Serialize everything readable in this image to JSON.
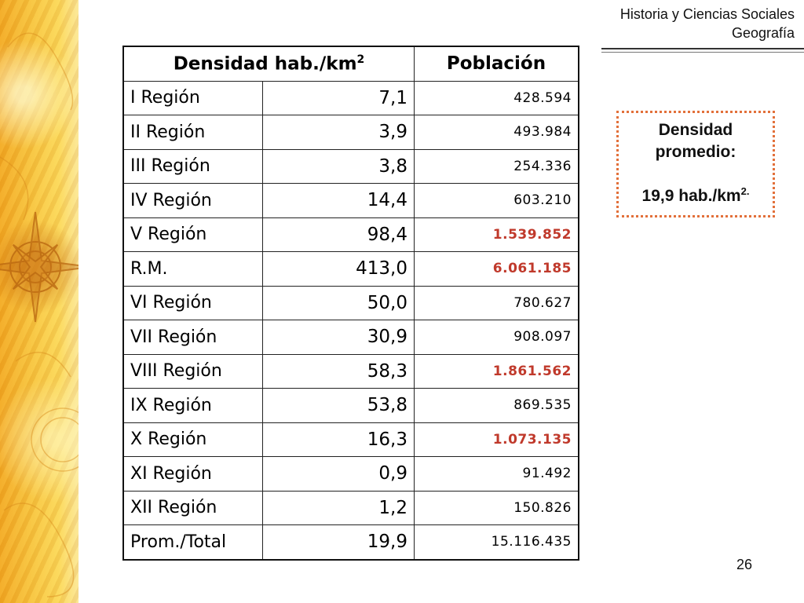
{
  "header": {
    "line1": "Historia y Ciencias Sociales",
    "line2": "Geografía"
  },
  "table": {
    "headers": {
      "density": "Densidad hab./km",
      "density_sup": "2",
      "population": "Población"
    },
    "rows": [
      {
        "region": "I Región",
        "density": "7,1",
        "population": "428.594",
        "highlight": false
      },
      {
        "region": "II Región",
        "density": "3,9",
        "population": "493.984",
        "highlight": false
      },
      {
        "region": "III Región",
        "density": "3,8",
        "population": "254.336",
        "highlight": false
      },
      {
        "region": "IV Región",
        "density": "14,4",
        "population": "603.210",
        "highlight": false
      },
      {
        "region": "V Región",
        "density": "98,4",
        "population": "1.539.852",
        "highlight": true
      },
      {
        "region": "R.M.",
        "density": "413,0",
        "population": "6.061.185",
        "highlight": true
      },
      {
        "region": "VI Región",
        "density": "50,0",
        "population": "780.627",
        "highlight": false
      },
      {
        "region": "VII Región",
        "density": "30,9",
        "population": "908.097",
        "highlight": false
      },
      {
        "region": "VIII Región",
        "density": "58,3",
        "population": "1.861.562",
        "highlight": true
      },
      {
        "region": "IX Región",
        "density": "53,8",
        "population": "869.535",
        "highlight": false
      },
      {
        "region": "X Región",
        "density": "16,3",
        "population": "1.073.135",
        "highlight": true
      },
      {
        "region": "XI Región",
        "density": "0,9",
        "population": "91.492",
        "highlight": false
      },
      {
        "region": "XII Región",
        "density": "1,2",
        "population": "150.826",
        "highlight": false
      },
      {
        "region": "Prom./Total",
        "density": "19,9",
        "population": "15.116.435",
        "highlight": false
      }
    ]
  },
  "average_box": {
    "line1": "Densidad",
    "line2": "promedio:",
    "value": "19,9 hab./km",
    "value_sup": "2.",
    "border_color": "#e2703a"
  },
  "highlight_color": "#c0392b",
  "page_number": "26"
}
